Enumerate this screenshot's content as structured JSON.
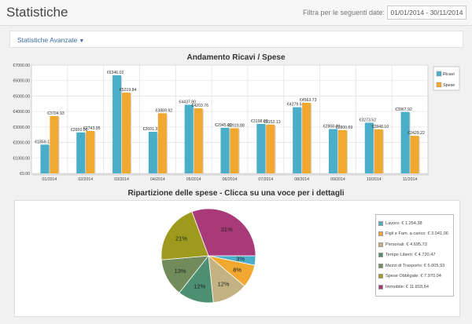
{
  "header": {
    "title": "Statistiche",
    "filter_label": "Filtra per le seguenti date:",
    "date_range": "01/01/2014 - 30/11/2014"
  },
  "advanced": {
    "label": "Statistiche Avanzate"
  },
  "chart_data": [
    {
      "type": "bar",
      "title": "Andamento Ricavi / Spese",
      "categories": [
        "01/2014",
        "02/2014",
        "03/2014",
        "04/2014",
        "05/2014",
        "06/2014",
        "07/2014",
        "08/2014",
        "09/2014",
        "10/2014",
        "11/2014"
      ],
      "series": [
        {
          "name": "Ricavi",
          "color": "#4aaec9",
          "values": [
            1859.11,
            2650.0,
            6346.02,
            2691.33,
            4437.8,
            2945.0,
            3198.0,
            4279.54,
            2868.0,
            3273.52,
            3967.92
          ],
          "labels": [
            "€1859.11",
            "€2650.00",
            "€6346.02",
            "€2691.33",
            "€4437.80",
            "€2945.00",
            "€3198.00",
            "€4279.54",
            "€2868.00",
            "€3273.52",
            "€3967.92"
          ]
        },
        {
          "name": "Spese",
          "color": "#f0a830",
          "values": [
            3704.93,
            2743.95,
            5219.84,
            3889.92,
            4203.76,
            2919.88,
            3152.13,
            4563.73,
            2800.69,
            2848.1,
            2429.22
          ],
          "labels": [
            "€3704.93",
            "€2743.95",
            "€5219.84",
            "€3889.92",
            "€4203.76",
            "€2919.88",
            "€3152.13",
            "€4563.73",
            "€2800.69",
            "€2848.10",
            "€2429.22"
          ]
        }
      ],
      "ylim": [
        0,
        7000
      ],
      "yticks": [
        "€0.00",
        "€1000.00",
        "€2000.00",
        "€3000.00",
        "€4000.00",
        "€5000.00",
        "€6000.00",
        "€7000.00"
      ],
      "grid": true,
      "legend": "right"
    },
    {
      "type": "pie",
      "title": "Ripartizione delle spese - Clicca su una voce per i dettagli",
      "slices": [
        {
          "name": "Lavoro",
          "legend": "Lavoro: € 1.254,38",
          "value": 1254.38,
          "label": "3%",
          "color": "#4aaec9"
        },
        {
          "name": "Figli e Fam. a carico",
          "legend": "Figli e Fam. a carico: € 3.041,06",
          "value": 3041.06,
          "label": "8%",
          "color": "#f0a830"
        },
        {
          "name": "Personali",
          "legend": "Personali: € 4.695,73",
          "value": 4695.73,
          "label": "12%",
          "color": "#c4b382"
        },
        {
          "name": "Tempo Libero",
          "legend": "Tempo Libero: € 4.720,47",
          "value": 4720.47,
          "label": "12%",
          "color": "#4c9071"
        },
        {
          "name": "Mezzi di Trasporto",
          "legend": "Mezzi di Trasporto: € 5.005,93",
          "value": 5005.93,
          "label": "13%",
          "color": "#718c5a"
        },
        {
          "name": "Spese Obbligate",
          "legend": "Spese Obbligate: € 7.970,04",
          "value": 7970.04,
          "label": "21%",
          "color": "#9e9a1e"
        },
        {
          "name": "Immobile",
          "legend": "Immobile: € 11.818,64",
          "value": 11818.64,
          "label": "31%",
          "color": "#a83a7a"
        }
      ],
      "legend": "right"
    }
  ]
}
